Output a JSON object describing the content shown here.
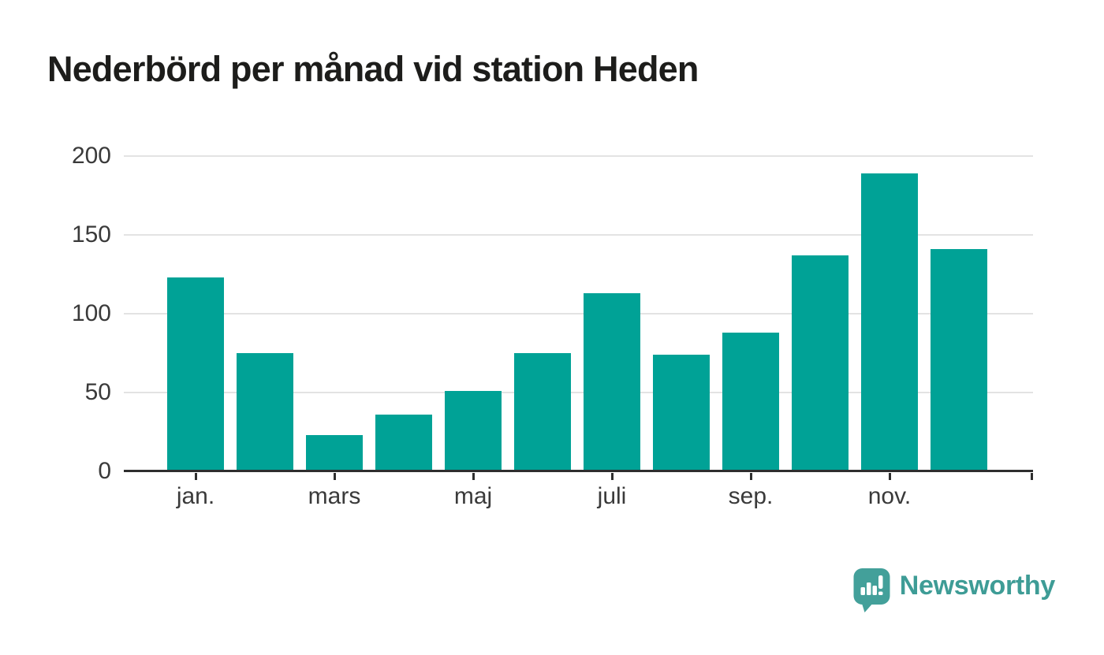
{
  "title": "Nederbörd per månad vid station Heden",
  "branding": {
    "label": "Newsworthy",
    "icon": "newsworthy-speech-bubble-chart-icon"
  },
  "colors": {
    "bar": "#00A296",
    "axis": "#2E2E2E",
    "grid": "#E3E3E3",
    "tick_label": "#3A3A3A",
    "title": "#1D1D1B",
    "brand_icon": "#43A09A",
    "brand_text": "#3E9C96"
  },
  "chart_data": {
    "type": "bar",
    "title": "Nederbörd per månad vid station Heden",
    "bar_count": 12,
    "values": [
      122,
      74,
      22,
      35,
      50,
      74,
      112,
      73,
      87,
      136,
      188,
      140
    ],
    "x_tick_labels": [
      "jan.",
      "mars",
      "maj",
      "juli",
      "sep.",
      "nov."
    ],
    "x_tick_bar_indices": [
      0,
      2,
      4,
      6,
      8,
      10
    ],
    "yticks": [
      0,
      50,
      100,
      150,
      200
    ],
    "ylim": [
      0,
      200
    ],
    "grid": "horizontal",
    "legend": "none",
    "xlabel": "",
    "ylabel": ""
  }
}
